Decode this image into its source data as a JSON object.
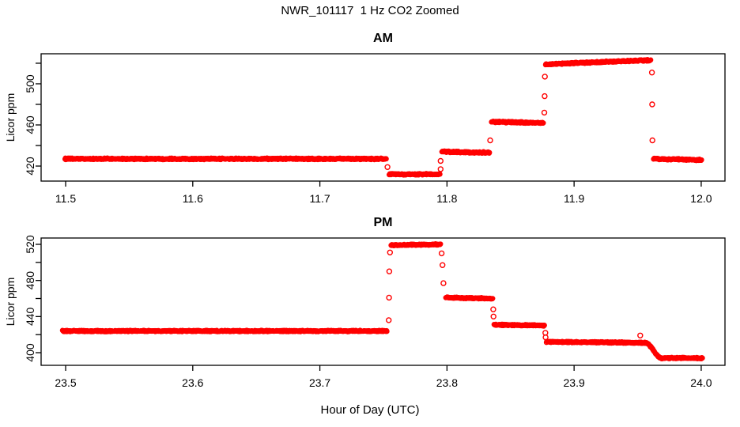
{
  "figure": {
    "title": "NWR_101117  1 Hz CO2 Zoomed",
    "xlabel": "Hour of Day (UTC)",
    "point_color": "#FF0000",
    "axis_color": "#000000",
    "background_color": "#FFFFFF"
  },
  "chart_data": [
    {
      "type": "scatter",
      "panel": "AM",
      "title": "AM",
      "ylabel": "Licor ppm",
      "xlabel": "Hour of Day (UTC)",
      "legend": "none",
      "grid": false,
      "marker": "open-circle",
      "sample_rate_hz": 1,
      "xlim": [
        11.4807,
        12.0187
      ],
      "ylim": [
        405.4,
        529.2
      ],
      "xticks": [
        {
          "v": 11.5,
          "label": "11.5"
        },
        {
          "v": 11.6,
          "label": "11.6"
        },
        {
          "v": 11.7,
          "label": "11.7"
        },
        {
          "v": 11.8,
          "label": "11.8"
        },
        {
          "v": 11.9,
          "label": "11.9"
        },
        {
          "v": 12.0,
          "label": "12.0"
        }
      ],
      "yticks": [
        {
          "v": 420,
          "label": "420"
        },
        {
          "v": 440,
          "label": ""
        },
        {
          "v": 460,
          "label": "460"
        },
        {
          "v": 480,
          "label": ""
        },
        {
          "v": 500,
          "label": "500"
        },
        {
          "v": 520,
          "label": ""
        }
      ],
      "segments": [
        {
          "x0": 11.4995,
          "x1": 11.7525,
          "y0": 427,
          "y1": 427
        },
        {
          "x0": 11.7545,
          "x1": 11.7945,
          "y0": 412,
          "y1": 412
        },
        {
          "x0": 11.796,
          "x1": 11.8335,
          "y0": 434,
          "y1": 433
        },
        {
          "x0": 11.835,
          "x1": 11.876,
          "y0": 463,
          "y1": 462
        },
        {
          "x0": 11.8775,
          "x1": 11.9605,
          "y0": 519,
          "y1": 523
        },
        {
          "x0": 11.9625,
          "x1": 12.0005,
          "y0": 427,
          "y1": 426
        }
      ],
      "transition_points": [
        {
          "x": 11.7532,
          "y": 419
        },
        {
          "x": 11.795,
          "y": 425
        },
        {
          "x": 11.795,
          "y": 417
        },
        {
          "x": 11.834,
          "y": 445
        },
        {
          "x": 11.8766,
          "y": 472
        },
        {
          "x": 11.8768,
          "y": 488
        },
        {
          "x": 11.877,
          "y": 507
        },
        {
          "x": 11.9612,
          "y": 511
        },
        {
          "x": 11.9614,
          "y": 480
        },
        {
          "x": 11.9616,
          "y": 445
        }
      ]
    },
    {
      "type": "scatter",
      "panel": "PM",
      "title": "PM",
      "ylabel": "Licor ppm",
      "xlabel": "Hour of Day (UTC)",
      "legend": "none",
      "grid": false,
      "marker": "open-circle",
      "sample_rate_hz": 1,
      "xlim": [
        23.4807,
        24.0187
      ],
      "ylim": [
        386.0,
        527.0
      ],
      "xticks": [
        {
          "v": 23.5,
          "label": "23.5"
        },
        {
          "v": 23.6,
          "label": "23.6"
        },
        {
          "v": 23.7,
          "label": "23.7"
        },
        {
          "v": 23.8,
          "label": "23.8"
        },
        {
          "v": 23.9,
          "label": "23.9"
        },
        {
          "v": 24.0,
          "label": "24.0"
        }
      ],
      "yticks": [
        {
          "v": 400,
          "label": "400"
        },
        {
          "v": 420,
          "label": ""
        },
        {
          "v": 440,
          "label": "440"
        },
        {
          "v": 460,
          "label": ""
        },
        {
          "v": 480,
          "label": "480"
        },
        {
          "v": 500,
          "label": ""
        },
        {
          "v": 520,
          "label": "520"
        }
      ],
      "segments": [
        {
          "x0": 23.4975,
          "x1": 23.753,
          "y0": 424,
          "y1": 424
        },
        {
          "x0": 23.756,
          "x1": 23.795,
          "y0": 519,
          "y1": 520
        },
        {
          "x0": 23.799,
          "x1": 23.836,
          "y0": 461,
          "y1": 460
        },
        {
          "x0": 23.837,
          "x1": 23.877,
          "y0": 431,
          "y1": 430
        },
        {
          "x0": 23.8782,
          "x1": 23.956,
          "y0": 412,
          "y1": 411
        },
        {
          "x0": 23.956,
          "x1": 23.969,
          "y0": 411,
          "y1": 394,
          "smooth": true
        },
        {
          "x0": 23.969,
          "x1": 24.001,
          "y0": 394,
          "y1": 394
        }
      ],
      "transition_points": [
        {
          "x": 23.7542,
          "y": 436
        },
        {
          "x": 23.7544,
          "y": 461
        },
        {
          "x": 23.7546,
          "y": 490
        },
        {
          "x": 23.7552,
          "y": 511
        },
        {
          "x": 23.7958,
          "y": 510
        },
        {
          "x": 23.7965,
          "y": 497
        },
        {
          "x": 23.7972,
          "y": 477
        },
        {
          "x": 23.8364,
          "y": 448
        },
        {
          "x": 23.8366,
          "y": 440
        },
        {
          "x": 23.8774,
          "y": 422
        },
        {
          "x": 23.8776,
          "y": 417
        },
        {
          "x": 23.952,
          "y": 419
        }
      ]
    }
  ]
}
